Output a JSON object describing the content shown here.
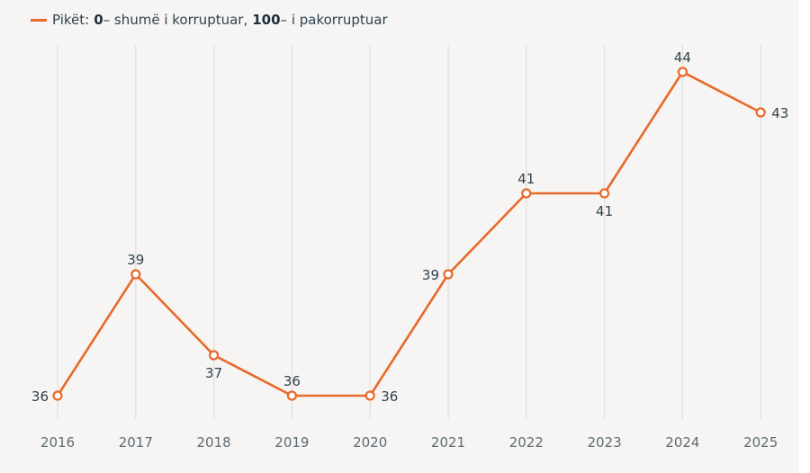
{
  "legend": {
    "prefix": "Pikët:",
    "low_value": "0",
    "low_text": "– shumë i korruptuar,",
    "high_value": "100",
    "high_text": "– i pakorruptuar"
  },
  "colors": {
    "line": "#e8692b",
    "grid": "#e2e0dd",
    "text": "#2f4250",
    "background": "#f6f5f3"
  },
  "chart_data": {
    "type": "line",
    "title": "",
    "xlabel": "",
    "ylabel": "",
    "ylim": [
      34.5,
      44.5
    ],
    "grid": "vertical",
    "legend_position": "top-left",
    "series": [
      {
        "name": "Pikët: 0 – shumë i korruptuar, 100 – i pakorruptuar",
        "x": [
          "2016",
          "2017",
          "2018",
          "2019",
          "2020",
          "2021",
          "2022",
          "2023",
          "2024",
          "2025"
        ],
        "values": [
          36,
          39,
          37,
          36,
          36,
          39,
          41,
          41,
          44,
          43
        ],
        "label_positions": [
          "left",
          "above",
          "below",
          "above",
          "right",
          "left",
          "above",
          "below",
          "above",
          "right"
        ]
      }
    ]
  }
}
